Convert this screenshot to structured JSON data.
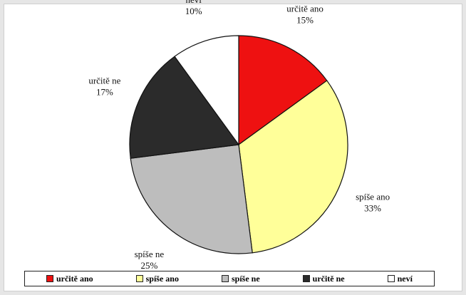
{
  "chart_data": {
    "type": "pie",
    "start_angle_deg": 0,
    "direction": "clockwise",
    "slices": [
      {
        "label": "určitě ano",
        "value": 15,
        "value_text": "15%",
        "color": "#ee1111"
      },
      {
        "label": "spíše ano",
        "value": 33,
        "value_text": "33%",
        "color": "#ffff99"
      },
      {
        "label": "spíše ne",
        "value": 25,
        "value_text": "25%",
        "color": "#bdbdbd"
      },
      {
        "label": "určitě ne",
        "value": 17,
        "value_text": "17%",
        "color": "#2b2b2b"
      },
      {
        "label": "neví",
        "value": 10,
        "value_text": "10%",
        "color": "#ffffff"
      }
    ],
    "legend_position": "bottom"
  }
}
